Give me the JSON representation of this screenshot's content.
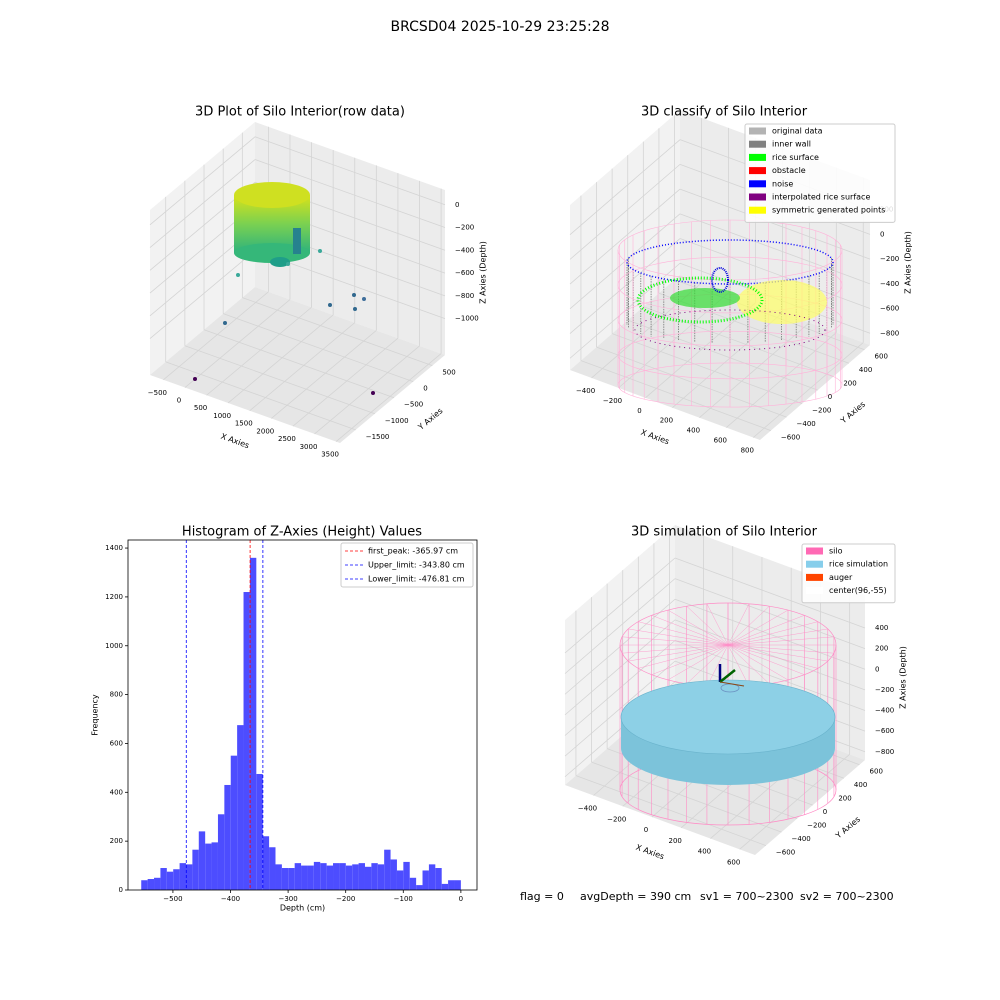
{
  "title": "BRCSD04 2025-10-29 23:25:28",
  "chart_data": [
    {
      "type": "scatter3d",
      "title": "3D Plot of Silo Interior(row data)",
      "xlabel": "X Axies",
      "ylabel": "Y Axies",
      "zlabel": "Z Axies (Depth)",
      "xlim": [
        -810,
        3590
      ],
      "ylim": [
        -1910,
        830
      ],
      "zlim": [
        -1320,
        130
      ],
      "xticks": [
        {
          "value": -500,
          "label": "−500"
        },
        0,
        500,
        1000,
        1500,
        2000,
        2500,
        3000,
        3500
      ],
      "yticks": [
        {
          "value": -1500,
          "label": "−1500"
        },
        {
          "value": -1000,
          "label": "−1000"
        },
        {
          "value": -500,
          "label": "−500"
        },
        0,
        500
      ],
      "zticks": [
        {
          "value": -1000,
          "label": "−1000"
        },
        {
          "value": -800,
          "label": "−800"
        },
        {
          "value": -600,
          "label": "−600"
        },
        {
          "value": -400,
          "label": "−400"
        },
        {
          "value": -200,
          "label": "−200"
        },
        0
      ]
    },
    {
      "type": "scatter3d",
      "title": "3D classify of Silo Interior",
      "xlabel": "X Axies",
      "ylabel": "Y Axies",
      "zlabel": "Z Axies (Depth)",
      "xlim": [
        -560,
        850
      ],
      "ylim": [
        -740,
        670
      ],
      "zlim": [
        -895,
        440
      ],
      "xticks": [
        {
          "value": -400,
          "label": "−400"
        },
        {
          "value": -200,
          "label": "−200"
        },
        0,
        200,
        400,
        600,
        800
      ],
      "yticks": [
        {
          "value": -600,
          "label": "−600"
        },
        {
          "value": -400,
          "label": "−400"
        },
        {
          "value": -200,
          "label": "−200"
        },
        0,
        200,
        400,
        600
      ],
      "zticks": [
        {
          "value": -800,
          "label": "−800"
        },
        {
          "value": -600,
          "label": "−600"
        },
        {
          "value": -400,
          "label": "−400"
        },
        {
          "value": -200,
          "label": "−200"
        },
        0,
        200
      ],
      "legend": [
        {
          "name": "original data",
          "color": "#b3b3b3"
        },
        {
          "name": "inner wall",
          "color": "#808080"
        },
        {
          "name": "rice surface",
          "color": "#00ff00"
        },
        {
          "name": "obstacle",
          "color": "#ff0000"
        },
        {
          "name": "noise",
          "color": "#0000ff"
        },
        {
          "name": "interpolated rice surface",
          "color": "#800080"
        },
        {
          "name": "symmetric generated points",
          "color": "#ffff00"
        }
      ]
    },
    {
      "type": "histogram",
      "title": "Histogram of Z-Axies (Height) Values",
      "xlabel": "Depth (cm)",
      "ylabel": "Frequency",
      "color": "#4d4dff",
      "bins": [
        -555,
        -543.9,
        -532.8,
        -521.7,
        -510.6,
        -499.5,
        -488.4,
        -477.3,
        -466.2,
        -455.1,
        -444,
        -432.9,
        -421.8,
        -410.7,
        -399.6,
        -388.5,
        -377.4,
        -366.3,
        -355.2,
        -344.1,
        -333,
        -321.9,
        -310.8,
        -299.7,
        -288.6,
        -277.5,
        -266.4,
        -255.3,
        -244.2,
        -233.1,
        -222,
        -210.9,
        -199.8,
        -188.7,
        -177.6,
        -166.5,
        -155.4,
        -144.3,
        -133.2,
        -122.1,
        -111,
        -99.9,
        -88.8,
        -77.7,
        -66.6,
        -55.5,
        -44.4,
        -33.3,
        -22.2,
        -11.1,
        0
      ],
      "values": [
        40,
        45,
        50,
        90,
        75,
        85,
        110,
        105,
        165,
        240,
        190,
        195,
        310,
        430,
        550,
        675,
        1220,
        1360,
        475,
        220,
        175,
        105,
        90,
        90,
        110,
        100,
        100,
        115,
        110,
        100,
        110,
        110,
        100,
        105,
        110,
        95,
        110,
        105,
        165,
        125,
        80,
        115,
        50,
        20,
        80,
        105,
        90,
        25,
        40,
        40
      ],
      "xlim": [
        -578,
        28
      ],
      "ylim": [
        0,
        1433
      ],
      "xticks": [
        {
          "value": -500,
          "label": "−500"
        },
        {
          "value": -400,
          "label": "−400"
        },
        {
          "value": -300,
          "label": "−300"
        },
        {
          "value": -200,
          "label": "−200"
        },
        {
          "value": -100,
          "label": "−100"
        },
        0
      ],
      "yticks": [
        0,
        200,
        400,
        600,
        800,
        1000,
        1200,
        1400
      ],
      "vlines": [
        {
          "name": "first_peak: -365.97 cm",
          "value": -365.97,
          "color": "#ff0000"
        },
        {
          "name": "Upper_limit: -343.80 cm",
          "value": -343.8,
          "color": "#0000ff"
        },
        {
          "name": "Lower_limit: -476.81 cm",
          "value": -476.81,
          "color": "#0000ff"
        }
      ]
    },
    {
      "type": "surface3d",
      "title": "3D simulation of Silo Interior",
      "xlabel": "X Axies",
      "ylabel": "Y Axies",
      "zlabel": "Z Axies (Depth)",
      "xlim": [
        -595,
        705
      ],
      "ylim": [
        -740,
        670
      ],
      "zlim": [
        -880,
        720
      ],
      "xticks": [
        {
          "value": -400,
          "label": "−400"
        },
        {
          "value": -200,
          "label": "−200"
        },
        0,
        200,
        400,
        600
      ],
      "yticks": [
        {
          "value": -600,
          "label": "−600"
        },
        {
          "value": -400,
          "label": "−400"
        },
        {
          "value": -200,
          "label": "−200"
        },
        0,
        200,
        400,
        600
      ],
      "zticks": [
        {
          "value": -800,
          "label": "−800"
        },
        {
          "value": -600,
          "label": "−600"
        },
        {
          "value": -400,
          "label": "−400"
        },
        {
          "value": -200,
          "label": "−200"
        },
        0,
        200,
        400
      ],
      "legend": [
        {
          "name": "silo",
          "color": "#ff69b4"
        },
        {
          "name": "rice simulation",
          "color": "#87ceeb"
        },
        {
          "name": "auger",
          "color": "#ff4500"
        },
        {
          "name": "center(96,-55)",
          "color": "#ffffff"
        }
      ]
    }
  ],
  "footer": [
    "flag = 0",
    "avgDepth = 390 cm",
    "sv1 = 700~2300",
    "sv2 = 700~2300"
  ]
}
